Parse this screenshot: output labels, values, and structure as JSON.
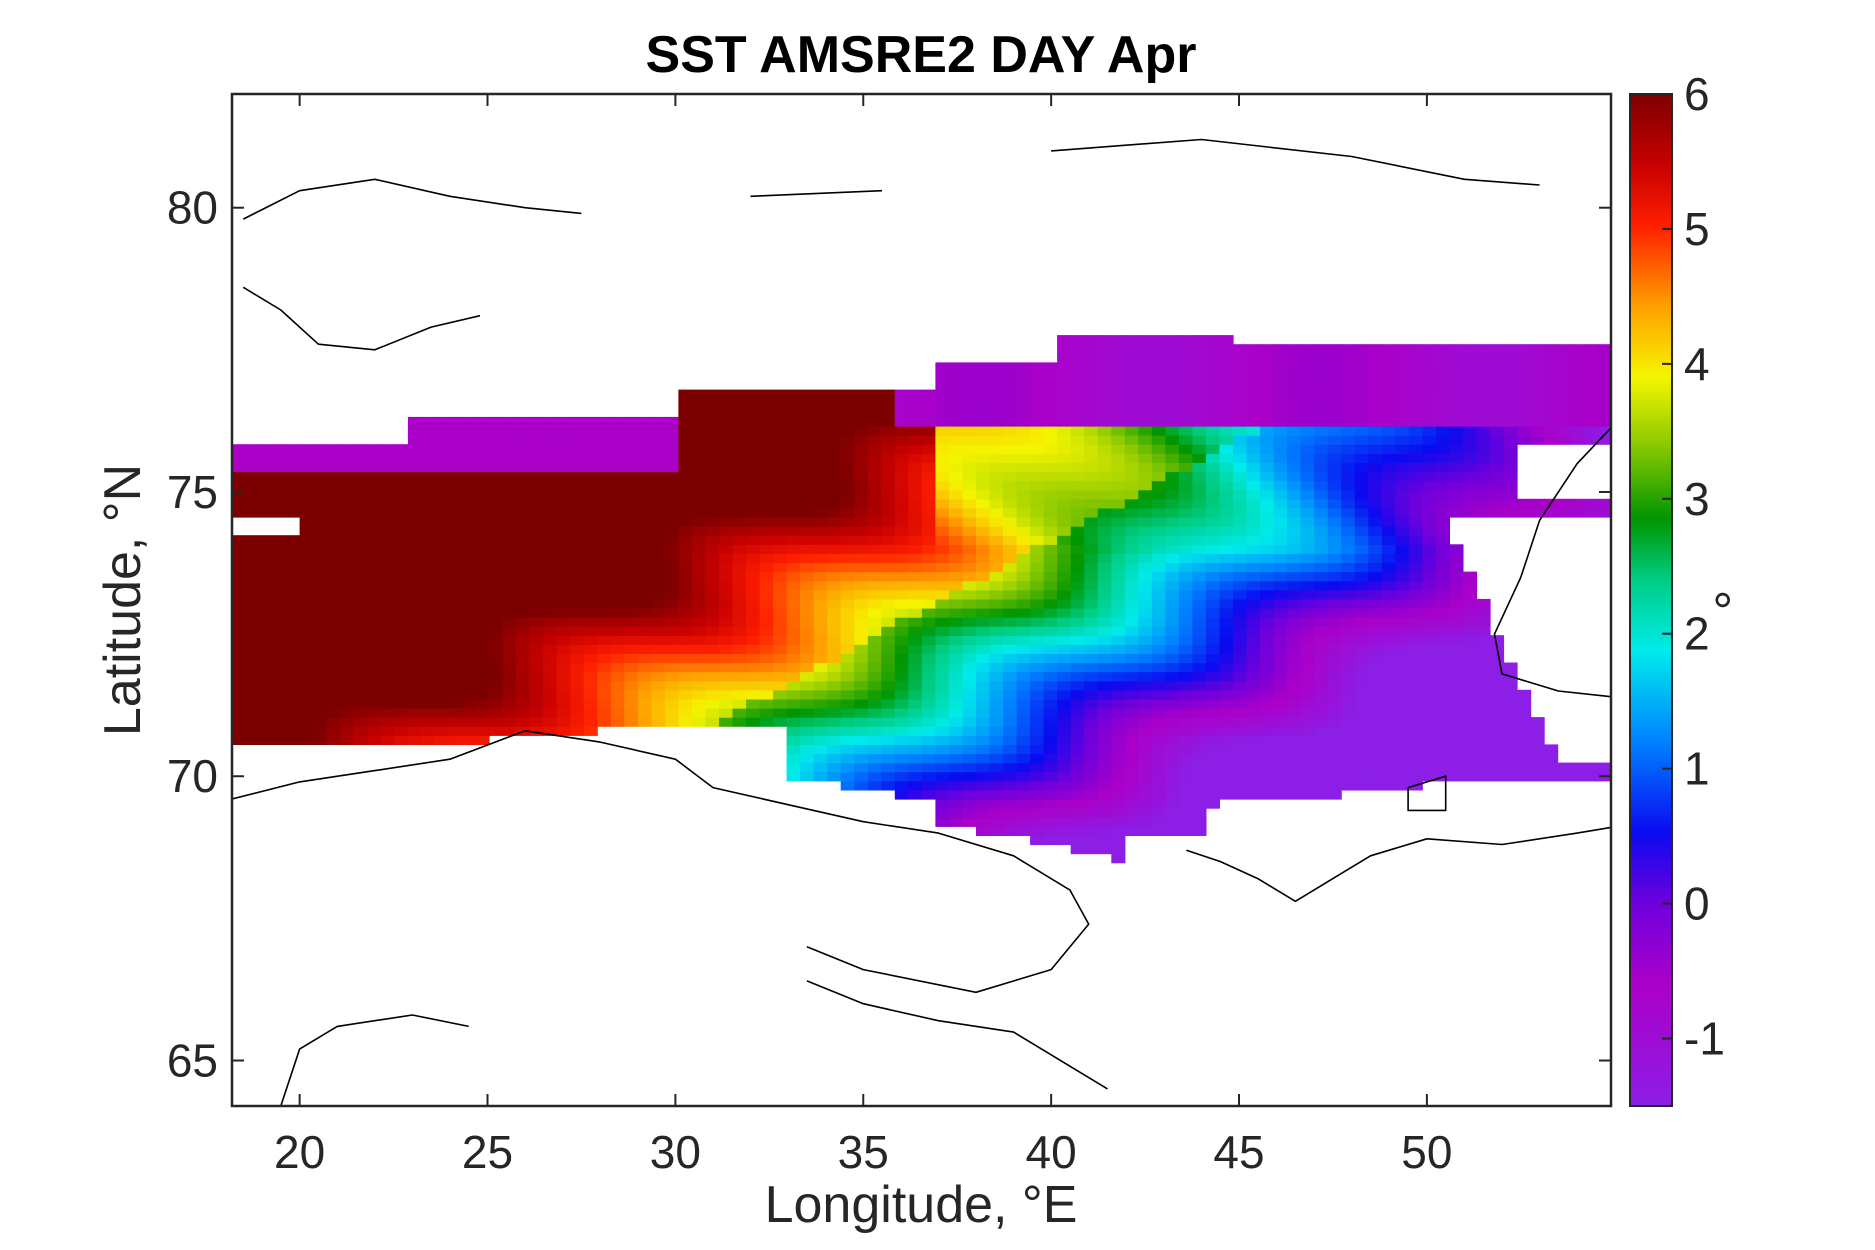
{
  "chart_data": {
    "type": "heatmap",
    "title": "SST AMSRE2 DAY Apr",
    "xlabel": "Longitude, °E",
    "ylabel": "Latitude, °N",
    "xlim": [
      18.2,
      54.9
    ],
    "ylim": [
      64.2,
      82.0
    ],
    "xticks": [
      20,
      25,
      30,
      35,
      40,
      45,
      50
    ],
    "yticks": [
      65,
      70,
      75,
      80
    ],
    "colorbar": {
      "label": "°",
      "range": [
        -1.5,
        6
      ],
      "ticks": [
        -1,
        0,
        1,
        2,
        3,
        4,
        5,
        6
      ],
      "colormap": "jet-like (purple → blue → cyan → green → yellow → orange → red → dark red)"
    },
    "values_description": "Sea surface temperature grid over the Barents Sea (about 18–55°E, 68–78°N); warmest (≈5–6°) near 18–28°E, 71–74°N, decreasing to ≈2–3° near 35–45°E and below 0° in the north-east near 76–78°N."
  }
}
